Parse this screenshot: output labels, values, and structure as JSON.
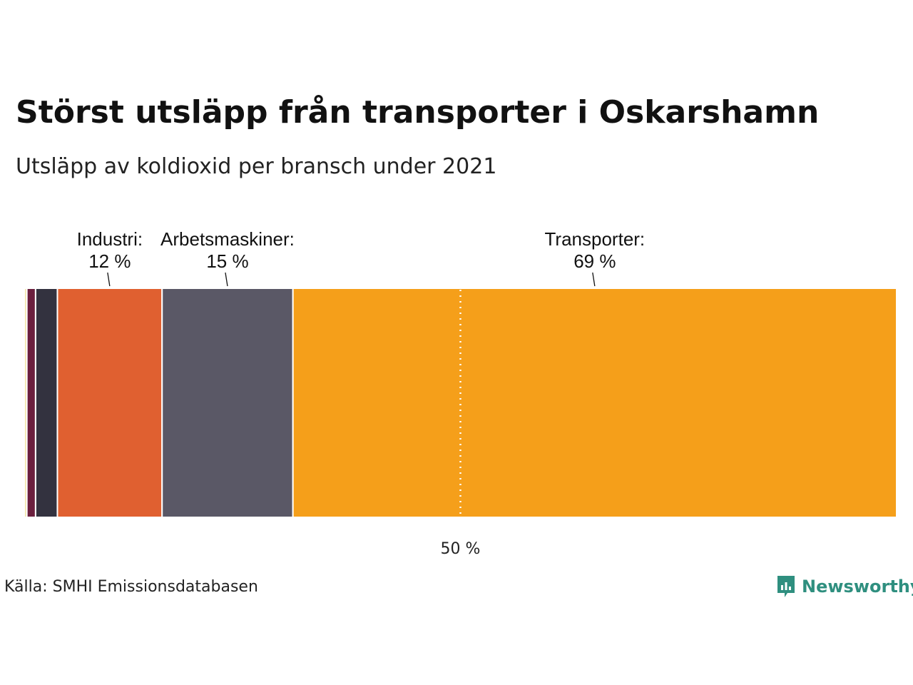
{
  "title": "Störst utsläpp från transporter i Oskarshamn",
  "subtitle": "Utsläpp av koldioxid per bransch under 2021",
  "source": "Källa: SMHI Emissionsdatabasen",
  "logo": {
    "text": "Newsworthy",
    "icon": "newsworthy-logo-icon",
    "color": "#2f8f7f"
  },
  "chart_data": {
    "type": "bar",
    "orientation": "horizontal-stacked-100",
    "unit": "%",
    "reference_line": {
      "value": 50,
      "label": "50 %"
    },
    "series": [
      {
        "name": "",
        "value": 0.3,
        "color": "#f2e6a8",
        "label": "",
        "label_value": ""
      },
      {
        "name": "",
        "value": 1.0,
        "color": "#6b1f3e",
        "label": "",
        "label_value": ""
      },
      {
        "name": "",
        "value": 2.5,
        "color": "#33323f",
        "label": "",
        "label_value": ""
      },
      {
        "name": "Industri",
        "value": 12,
        "color": "#e06030",
        "label": "Industri:",
        "label_value": "12 %"
      },
      {
        "name": "Arbetsmaskiner",
        "value": 15,
        "color": "#5a5866",
        "label": "Arbetsmaskiner:",
        "label_value": "15 %"
      },
      {
        "name": "Transporter",
        "value": 69.2,
        "color": "#f59f1a",
        "label": "Transporter:",
        "label_value": "69 %"
      }
    ]
  }
}
